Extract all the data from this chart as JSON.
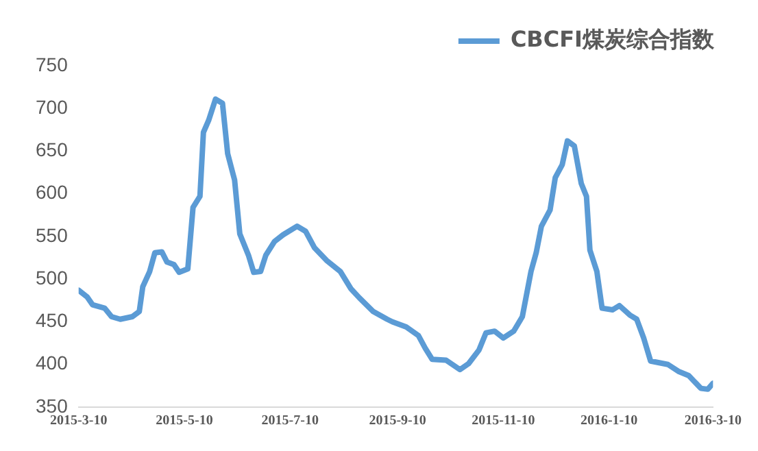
{
  "chart_data": {
    "type": "line",
    "legend": "top right",
    "grid": false,
    "marker": "none",
    "line_style": "solid",
    "xlim": [
      "2015-03-10",
      "2016-03-10"
    ],
    "xticks": [
      {
        "value": "2015-03-10",
        "label": "2015-3-10"
      },
      {
        "value": "2015-05-10",
        "label": "2015-5-10"
      },
      {
        "value": "2015-07-10",
        "label": "2015-7-10"
      },
      {
        "value": "2015-09-10",
        "label": "2015-9-10"
      },
      {
        "value": "2015-11-10",
        "label": "2015-11-10"
      },
      {
        "value": "2016-01-10",
        "label": "2016-1-10"
      },
      {
        "value": "2016-03-10",
        "label": "2016-3-10"
      }
    ],
    "ylim": [
      350,
      750
    ],
    "yticks": [
      350,
      400,
      450,
      500,
      550,
      600,
      650,
      700,
      750
    ],
    "x": [
      "2015-03-10",
      "2015-03-15",
      "2015-03-18",
      "2015-03-25",
      "2015-03-29",
      "2015-04-03",
      "2015-04-10",
      "2015-04-14",
      "2015-04-16",
      "2015-04-20",
      "2015-04-23",
      "2015-04-27",
      "2015-04-30",
      "2015-05-04",
      "2015-05-07",
      "2015-05-12",
      "2015-05-15",
      "2015-05-19",
      "2015-05-21",
      "2015-05-24",
      "2015-05-28",
      "2015-06-01",
      "2015-06-04",
      "2015-06-08",
      "2015-06-11",
      "2015-06-16",
      "2015-06-19",
      "2015-06-23",
      "2015-06-26",
      "2015-07-01",
      "2015-07-06",
      "2015-07-14",
      "2015-07-19",
      "2015-07-24",
      "2015-07-31",
      "2015-08-08",
      "2015-08-14",
      "2015-08-19",
      "2015-08-27",
      "2015-09-04",
      "2015-09-07",
      "2015-09-15",
      "2015-09-22",
      "2015-09-26",
      "2015-09-30",
      "2015-10-08",
      "2015-10-16",
      "2015-10-21",
      "2015-10-27",
      "2015-10-31",
      "2015-11-05",
      "2015-11-10",
      "2015-11-16",
      "2015-11-21",
      "2015-11-26",
      "2015-11-29",
      "2015-12-02",
      "2015-12-07",
      "2015-12-10",
      "2015-12-14",
      "2015-12-17",
      "2015-12-21",
      "2015-12-25",
      "2015-12-28",
      "2015-12-30",
      "2016-01-03",
      "2016-01-06",
      "2016-01-12",
      "2016-01-16",
      "2016-01-22",
      "2016-01-26",
      "2016-01-30",
      "2016-02-03",
      "2016-02-13",
      "2016-02-19",
      "2016-02-25",
      "2016-03-03",
      "2016-03-07",
      "2016-03-10"
    ],
    "series": [
      {
        "name": "CBCFI煤炭综合指数",
        "color": "#5b9bd5",
        "values": [
          487,
          479,
          470,
          466,
          456,
          453,
          456,
          462,
          491,
          509,
          531,
          532,
          520,
          517,
          508,
          512,
          584,
          597,
          672,
          686,
          711,
          706,
          647,
          616,
          553,
          528,
          508,
          509,
          528,
          544,
          552,
          562,
          556,
          537,
          522,
          509,
          489,
          478,
          462,
          453,
          450,
          444,
          434,
          419,
          406,
          405,
          394,
          401,
          417,
          437,
          439,
          431,
          439,
          456,
          509,
          531,
          562,
          581,
          619,
          634,
          662,
          656,
          612,
          597,
          534,
          509,
          466,
          464,
          469,
          458,
          453,
          431,
          404,
          400,
          392,
          387,
          372,
          371,
          378
        ]
      }
    ]
  }
}
